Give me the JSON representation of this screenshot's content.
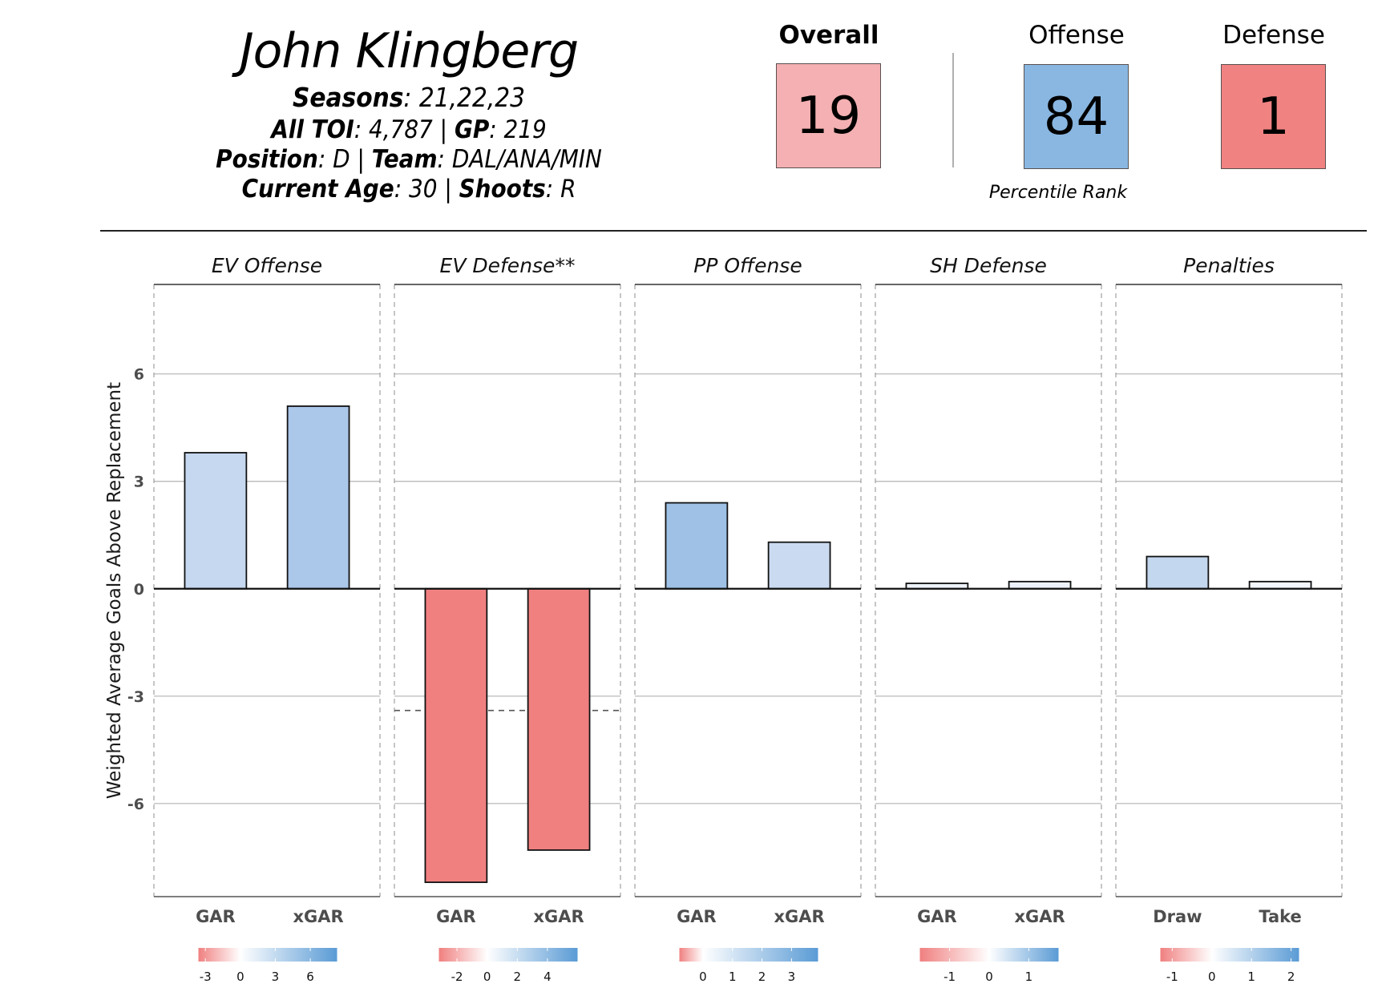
{
  "player": {
    "name": "John Klingberg",
    "seasons_label": "Seasons",
    "seasons": "21,22,23",
    "toi_label": "All TOI",
    "toi": "4,787",
    "gp_label": "GP",
    "gp": "219",
    "position_label": "Position",
    "position": "D",
    "team_label": "Team",
    "team": "DAL/ANA/MIN",
    "age_label": "Current Age",
    "age": "30",
    "shoots_label": "Shoots",
    "shoots": "R",
    "separator": "|"
  },
  "ranks": {
    "overall": {
      "label": "Overall",
      "value": "19",
      "color": "#f4b0b2"
    },
    "offense": {
      "label": "Offense",
      "value": "84",
      "color": "#89b7e2"
    },
    "defense": {
      "label": "Defense",
      "value": "1",
      "color": "#f08282"
    },
    "caption": "Percentile Rank"
  },
  "chart_data": {
    "type": "bar",
    "ylabel": "Weighted Average Goals Above Replacement",
    "ylim": [
      -8.6,
      8.5
    ],
    "yticks": [
      -6,
      -3,
      0,
      3,
      6
    ],
    "grid": true,
    "panels": [
      {
        "title": "EV Offense",
        "categories": [
          "GAR",
          "xGAR"
        ],
        "values": [
          3.8,
          5.1
        ],
        "colors": [
          "#c6d8ef",
          "#abc7ea"
        ],
        "legend": {
          "min": -3.6,
          "max": 8.3,
          "ticks": [
            -3,
            0,
            3,
            6
          ]
        }
      },
      {
        "title": "EV Defense**",
        "categories": [
          "GAR",
          "xGAR"
        ],
        "values": [
          -8.2,
          -7.3
        ],
        "colors": [
          "#f08080",
          "#f08080"
        ],
        "reference_line": -3.4,
        "legend": {
          "min": -3.2,
          "max": 6.0,
          "ticks": [
            -2,
            0,
            2,
            4
          ]
        }
      },
      {
        "title": "PP Offense",
        "categories": [
          "GAR",
          "xGAR"
        ],
        "values": [
          2.4,
          1.3
        ],
        "colors": [
          "#9fc1e6",
          "#cadbf1"
        ],
        "legend": {
          "min": -0.8,
          "max": 3.9,
          "ticks": [
            0,
            1,
            2,
            3
          ]
        }
      },
      {
        "title": "SH Defense",
        "categories": [
          "GAR",
          "xGAR"
        ],
        "values": [
          0.15,
          0.2
        ],
        "colors": [
          "#eef3fa",
          "#edf2fa"
        ],
        "legend": {
          "min": -1.75,
          "max": 1.75,
          "ticks": [
            -1,
            0,
            1
          ]
        }
      },
      {
        "title": "Penalties",
        "categories": [
          "Draw",
          "Take"
        ],
        "values": [
          0.9,
          0.2
        ],
        "colors": [
          "#c3d7ee",
          "#f3f6fc"
        ],
        "legend": {
          "min": -1.3,
          "max": 2.2,
          "ticks": [
            -1,
            0,
            1,
            2
          ]
        }
      }
    ],
    "legend_colors": {
      "low": "#f08080",
      "mid": "#ffffff",
      "high": "#5a9bd5"
    }
  }
}
